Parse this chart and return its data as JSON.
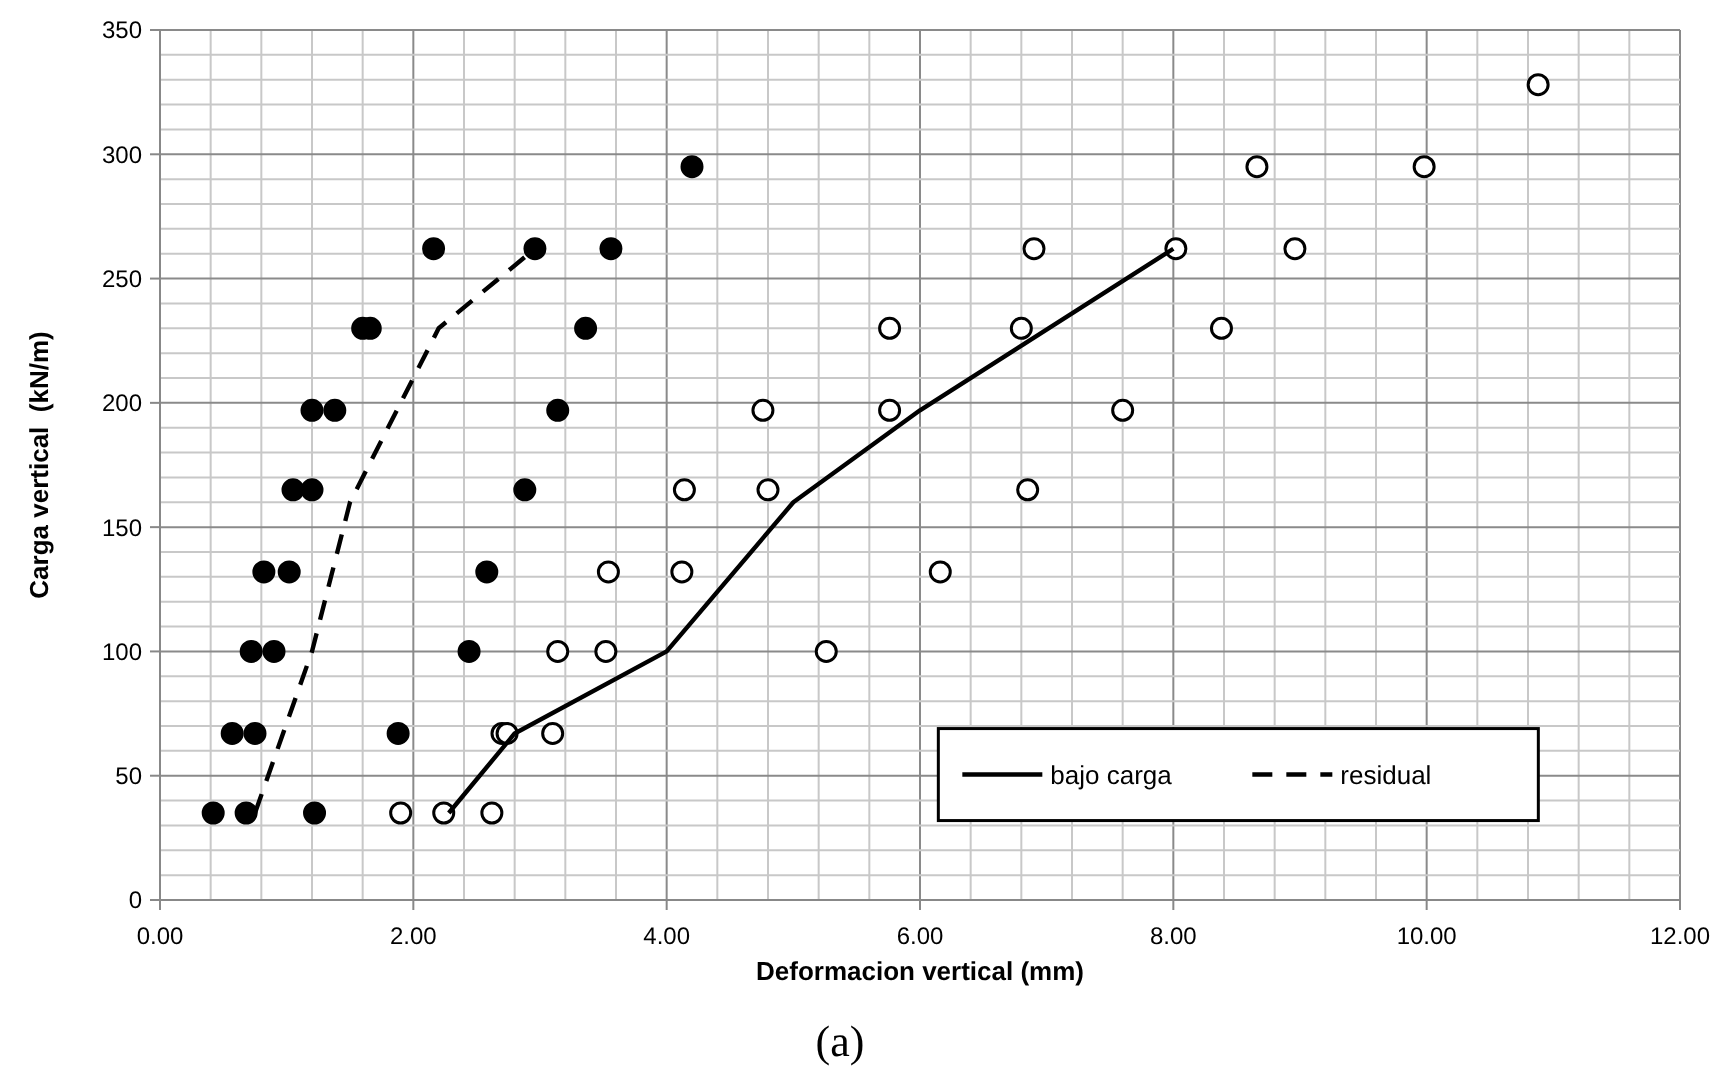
{
  "chart_data": {
    "type": "scatter",
    "xlabel": "Deformacion vertical (mm)",
    "ylabel": "Carga vertical  (kN/m)",
    "annotations": [
      "(a)"
    ],
    "xlim": [
      0,
      12
    ],
    "ylim": [
      0,
      350
    ],
    "xticks": [
      {
        "value": 0,
        "label": "0.00"
      },
      {
        "value": 0.4,
        "label": null
      },
      {
        "value": 0.8,
        "label": null
      },
      {
        "value": 1.2,
        "label": null
      },
      {
        "value": 1.6,
        "label": null
      },
      {
        "value": 2,
        "label": "2.00"
      },
      {
        "value": 2.4,
        "label": null
      },
      {
        "value": 2.8,
        "label": null
      },
      {
        "value": 3.2,
        "label": null
      },
      {
        "value": 3.6,
        "label": null
      },
      {
        "value": 4,
        "label": "4.00"
      },
      {
        "value": 4.4,
        "label": null
      },
      {
        "value": 4.8,
        "label": null
      },
      {
        "value": 5.2,
        "label": null
      },
      {
        "value": 5.6,
        "label": null
      },
      {
        "value": 6,
        "label": "6.00"
      },
      {
        "value": 6.4,
        "label": null
      },
      {
        "value": 6.8,
        "label": null
      },
      {
        "value": 7.2,
        "label": null
      },
      {
        "value": 7.6,
        "label": null
      },
      {
        "value": 8,
        "label": "8.00"
      },
      {
        "value": 8.4,
        "label": null
      },
      {
        "value": 8.8,
        "label": null
      },
      {
        "value": 9.2,
        "label": null
      },
      {
        "value": 9.6,
        "label": null
      },
      {
        "value": 10,
        "label": "10.00"
      },
      {
        "value": 10.4,
        "label": null
      },
      {
        "value": 10.8,
        "label": null
      },
      {
        "value": 11.2,
        "label": null
      },
      {
        "value": 11.6,
        "label": null
      },
      {
        "value": 12,
        "label": "12.00"
      }
    ],
    "yticks": [
      0,
      {
        "value": 10,
        "label": null
      },
      {
        "value": 20,
        "label": null
      },
      {
        "value": 30,
        "label": null
      },
      {
        "value": 40,
        "label": null
      },
      50,
      {
        "value": 60,
        "label": null
      },
      {
        "value": 70,
        "label": null
      },
      {
        "value": 80,
        "label": null
      },
      {
        "value": 90,
        "label": null
      },
      100,
      {
        "value": 110,
        "label": null
      },
      {
        "value": 120,
        "label": null
      },
      {
        "value": 130,
        "label": null
      },
      {
        "value": 140,
        "label": null
      },
      150,
      {
        "value": 160,
        "label": null
      },
      {
        "value": 170,
        "label": null
      },
      {
        "value": 180,
        "label": null
      },
      {
        "value": 190,
        "label": null
      },
      200,
      {
        "value": 210,
        "label": null
      },
      {
        "value": 220,
        "label": null
      },
      {
        "value": 230,
        "label": null
      },
      {
        "value": 240,
        "label": null
      },
      250,
      {
        "value": 260,
        "label": null
      },
      {
        "value": 270,
        "label": null
      },
      {
        "value": 280,
        "label": null
      },
      {
        "value": 290,
        "label": null
      },
      300,
      {
        "value": 310,
        "label": null
      },
      {
        "value": 320,
        "label": null
      },
      {
        "value": 330,
        "label": null
      },
      {
        "value": 340,
        "label": null
      },
      350
    ],
    "grid": true,
    "legend": "bottom right",
    "marker": "circle",
    "series": [
      {
        "color": "#000000",
        "x": [
          0.42,
          0.68,
          1.22,
          0.57,
          0.75,
          1.88,
          0.72,
          0.9,
          2.44,
          0.82,
          1.02,
          2.58,
          1.05,
          1.2,
          2.88,
          1.2,
          1.38,
          3.14,
          1.6,
          1.66,
          3.36,
          2.16,
          2.96,
          3.56,
          4.2
        ],
        "values": [
          35,
          35,
          35,
          67,
          67,
          67,
          100,
          100,
          100,
          132,
          132,
          132,
          165,
          165,
          165,
          197,
          197,
          197,
          230,
          230,
          230,
          262,
          262,
          262,
          295
        ]
      },
      {
        "color": "#ffffff",
        "x": [
          1.9,
          2.24,
          2.62,
          2.7,
          2.74,
          3.1,
          3.14,
          3.52,
          5.26,
          3.54,
          4.12,
          6.16,
          4.14,
          4.8,
          6.85,
          4.76,
          5.76,
          7.6,
          5.76,
          6.8,
          8.38,
          6.9,
          8.02,
          8.96,
          8.66,
          9.98,
          10.88
        ],
        "values": [
          35,
          35,
          35,
          67,
          67,
          67,
          100,
          100,
          100,
          132,
          132,
          132,
          165,
          165,
          165,
          197,
          197,
          197,
          230,
          230,
          230,
          262,
          262,
          262,
          295,
          295,
          328
        ]
      },
      {
        "type": "line",
        "name": "bajo carga",
        "color": "#000000",
        "line_style": "solid",
        "marker": "none",
        "x": [
          2.28,
          2.8,
          4.0,
          5.0,
          6.0,
          8.0
        ],
        "values": [
          35,
          67,
          100,
          160,
          197,
          262
        ]
      },
      {
        "type": "line",
        "name": "residual",
        "color": "#000000",
        "line_style": "dashed",
        "marker": "none",
        "x": [
          0.75,
          1.2,
          1.5,
          1.9,
          2.2,
          2.96
        ],
        "values": [
          35,
          100,
          160,
          200,
          230,
          262
        ]
      }
    ]
  }
}
